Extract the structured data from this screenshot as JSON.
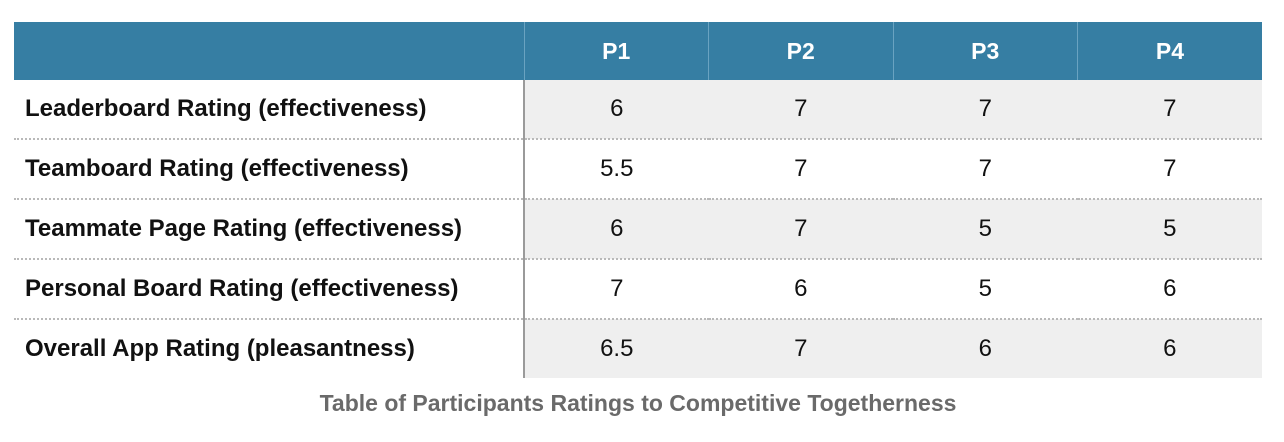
{
  "table": {
    "columns": [
      "",
      "P1",
      "P2",
      "P3",
      "P4"
    ],
    "rows": [
      {
        "label": "Leaderboard Rating (effectiveness)",
        "values": [
          "6",
          "7",
          "7",
          "7"
        ]
      },
      {
        "label": "Teamboard Rating (effectiveness)",
        "values": [
          "5.5",
          "7",
          "7",
          "7"
        ]
      },
      {
        "label": "Teammate Page Rating (effectiveness)",
        "values": [
          "6",
          "7",
          "5",
          "5"
        ]
      },
      {
        "label": "Personal Board Rating (effectiveness)",
        "values": [
          "7",
          "6",
          "5",
          "6"
        ]
      },
      {
        "label": "Overall App Rating (pleasantness)",
        "values": [
          "6.5",
          "7",
          "6",
          "6"
        ]
      }
    ]
  },
  "caption": "Table of Participants Ratings to Competitive Togetherness",
  "colors": {
    "header_bg": "#367ea3",
    "header_text": "#ffffff",
    "stripe_bg": "#efefef",
    "caption_text": "#6a6a6a"
  }
}
